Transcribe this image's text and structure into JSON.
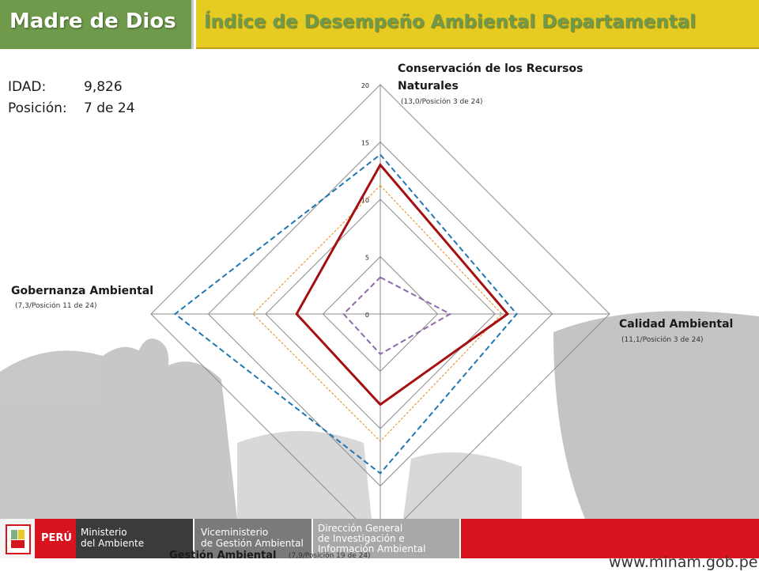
{
  "header": {
    "region": "Madre de Dios",
    "title": "Índice de Desempeño Ambiental Departamental"
  },
  "stats": {
    "idad_label": "IDAD:",
    "idad_value": "9,826",
    "rank_label": "Posición:",
    "rank_value": "7 de 24"
  },
  "colors": {
    "green": "#6f9a4c",
    "yellow": "#e5cb22",
    "series_main": "#a50f0f",
    "series_max": "#1f77b4",
    "series_avg": "#e08a1e",
    "series_min": "#8e6aa8",
    "footer_red": "#d7141e"
  },
  "chart_data": {
    "type": "radar",
    "axes": [
      {
        "title": "Conservación de los Recursos Naturales",
        "title_line1": "Conservación de los Recursos",
        "title_line2": "Naturales",
        "sub": "(13,0/Posición 3 de 24)"
      },
      {
        "title": "Calidad Ambiental",
        "sub": "(11,1/Posición 3 de 24)"
      },
      {
        "title": "Gestión Ambiental",
        "sub": "(7,9/Posición 19 de 24)"
      },
      {
        "title": "Gobernanza Ambiental",
        "sub": "(7,3/Posición 11 de 24)"
      }
    ],
    "ticks": [
      0,
      5,
      10,
      15,
      20
    ],
    "range": [
      0,
      20
    ],
    "series": [
      {
        "key": "main",
        "values": [
          13.0,
          11.1,
          7.9,
          7.3
        ],
        "style": "solid",
        "color": "#a50f0f"
      },
      {
        "key": "max",
        "values": [
          13.9,
          11.9,
          13.9,
          17.9
        ],
        "style": "dashed",
        "color": "#1f77b4"
      },
      {
        "key": "avg",
        "values": [
          11.2,
          10.6,
          11.1,
          11.1
        ],
        "style": "dotted",
        "color": "#e08a1e"
      },
      {
        "key": "min",
        "values": [
          3.2,
          6.1,
          3.5,
          3.2
        ],
        "style": "dashed",
        "color": "#8e6aa8"
      }
    ]
  },
  "footer": {
    "peru": "PERÚ",
    "ministry_line1": "Ministerio",
    "ministry_line2": "del Ambiente",
    "vice_line1": "Viceministerio",
    "vice_line2": "de Gestión Ambiental",
    "dir_line1": "Dirección General",
    "dir_line2": "de Investigación e",
    "dir_line3": "Información Ambiental",
    "url": "www.minam.gob.pe"
  }
}
